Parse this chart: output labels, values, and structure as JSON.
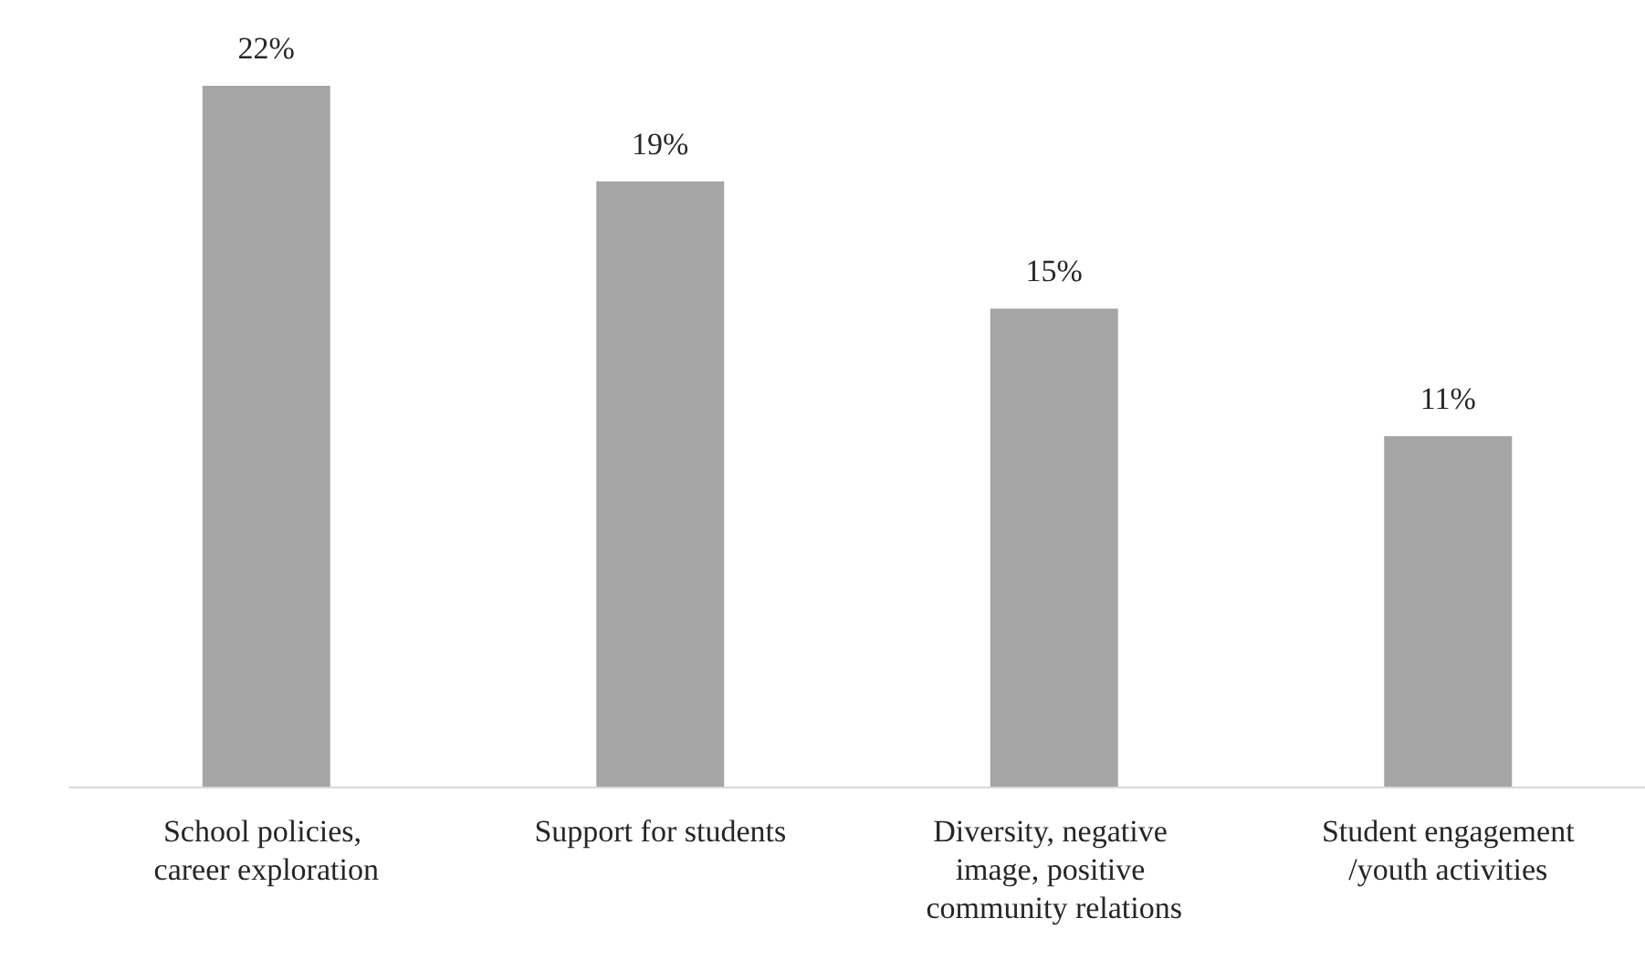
{
  "chart_data": {
    "type": "bar",
    "categories": [
      "School policies, career exploration",
      "Support for students",
      "Diversity, negative image, positive community relations",
      "Student engagement/youth activities"
    ],
    "values": [
      22,
      19,
      15,
      11
    ],
    "color": "#a5a5a5",
    "value_labels": [
      "22%",
      "19%",
      "15%",
      "11%"
    ]
  }
}
